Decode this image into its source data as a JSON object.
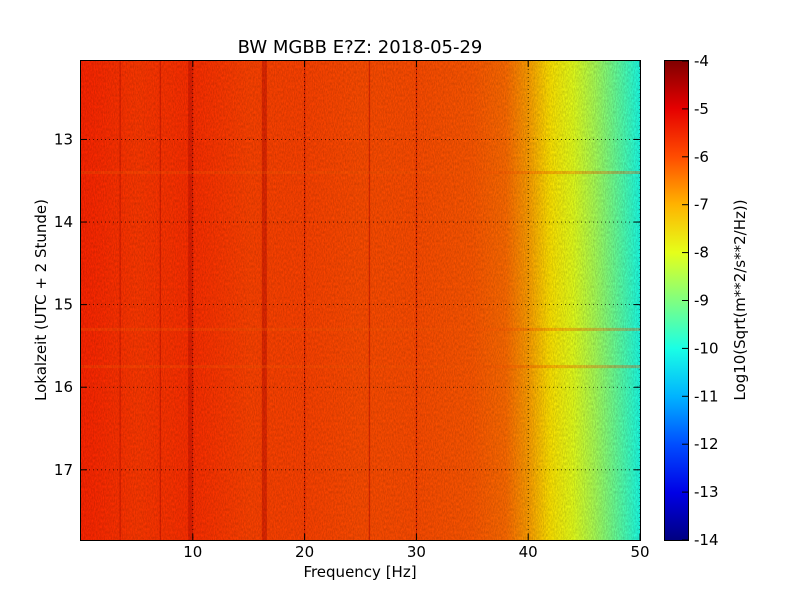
{
  "chart_data": {
    "type": "heatmap",
    "title": "BW MGBB E?Z: 2018-05-29",
    "xlabel": "Frequency [Hz]",
    "ylabel": "Lokalzeit (UTC + 2 Stunde)",
    "xlim": [
      0,
      50
    ],
    "ylim": [
      12.05,
      17.85
    ],
    "y_inverted": true,
    "grid": true,
    "x_ticks": [
      "10",
      "20",
      "30",
      "40",
      "50"
    ],
    "y_ticks": [
      "13",
      "14",
      "15",
      "16",
      "17"
    ],
    "colorbar": {
      "label": "Log10(Sqrt(m**2/s**2/Hz))",
      "colormap": "jet",
      "range": [
        -14,
        -4
      ],
      "ticks": [
        "-4",
        "-5",
        "-6",
        "-7",
        "-8",
        "-9",
        "-10",
        "-11",
        "-12",
        "-13",
        "-14"
      ]
    },
    "spectral_profile": {
      "frequency_hz": [
        0,
        5,
        10,
        15,
        20,
        25,
        30,
        35,
        38,
        40,
        42,
        44,
        46,
        48,
        50
      ],
      "log10_amplitude": [
        -5.6,
        -5.8,
        -5.7,
        -5.9,
        -5.9,
        -6.0,
        -6.0,
        -6.1,
        -6.3,
        -6.8,
        -7.5,
        -8.0,
        -8.6,
        -9.3,
        -10.0
      ]
    },
    "spectral_lines_hz": [
      3.5,
      7.1,
      9.8,
      16.4,
      20.0,
      25.8,
      30.0
    ],
    "time_features_h": [
      13.4,
      15.3,
      15.75
    ]
  }
}
